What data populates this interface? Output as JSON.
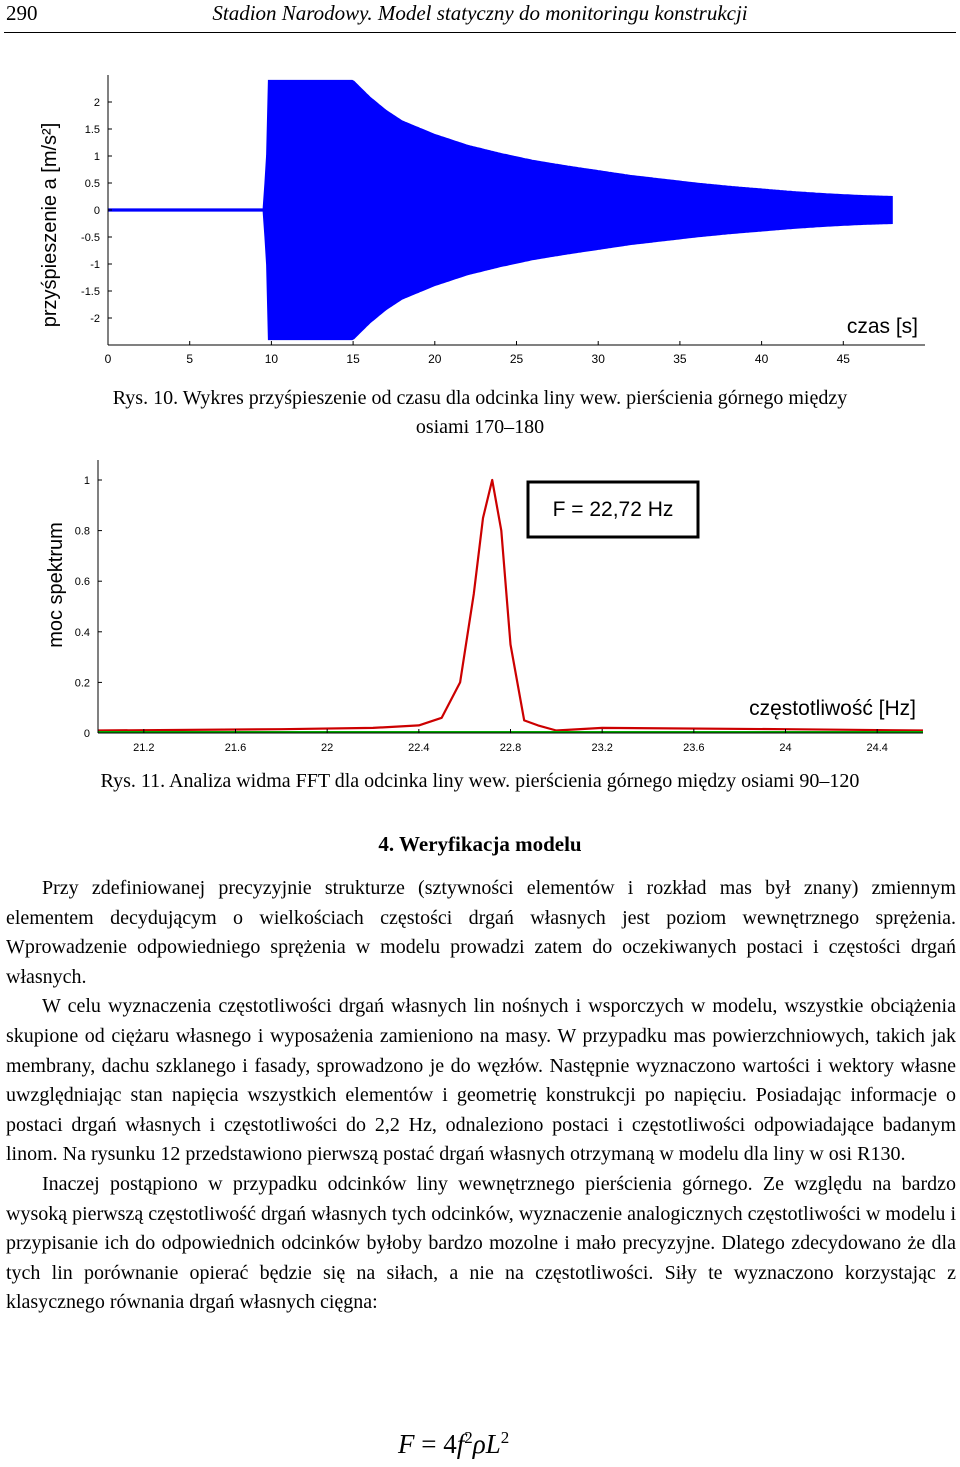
{
  "header": {
    "page_number": "290",
    "running_title": "Stadion Narodowy. Model statyczny do monitoringu konstrukcji"
  },
  "figures": {
    "fig10": {
      "caption_line1": "Rys. 10. Wykres przyśpieszenie od czasu dla odcinka liny wew. pierścienia górnego między",
      "caption_line2": "osiami 170–180",
      "ylabel": "przyśpieszenie a [m/s²]",
      "xlabel": "czas [s]"
    },
    "fig11": {
      "caption": "Rys. 11. Analiza widma FFT dla odcinka liny wew. pierścienia górnego między osiami 90–120",
      "ylabel": "moc spektrum",
      "xlabel": "częstotliwość [Hz]",
      "annotation": "F = 22,72 Hz"
    }
  },
  "chart_data": [
    {
      "type": "line",
      "xlabel": "czas [s]",
      "ylabel": "przyśpieszenie a [m/s²]",
      "xlim": [
        0,
        50
      ],
      "ylim": [
        -2.5,
        2.5
      ],
      "xticks": [
        "0",
        "5",
        "10",
        "15",
        "20",
        "25",
        "30",
        "35",
        "40",
        "45"
      ],
      "yticks": [
        "2",
        "1.5",
        "1",
        "0.5",
        "0",
        "-0.5",
        "-1",
        "-1.5",
        "-2"
      ],
      "color": "#0000ff",
      "grid": false,
      "envelope": {
        "t": [
          0,
          9.5,
          10,
          15,
          16,
          17,
          18,
          20,
          22,
          24,
          26,
          28,
          30,
          32,
          34,
          36,
          38,
          40,
          42,
          44,
          46,
          48
        ],
        "amplitude": [
          0.02,
          0.02,
          2.4,
          2.4,
          2.1,
          1.85,
          1.65,
          1.4,
          1.2,
          1.05,
          0.92,
          0.82,
          0.73,
          0.64,
          0.57,
          0.5,
          0.44,
          0.39,
          0.34,
          0.3,
          0.27,
          0.25
        ]
      }
    },
    {
      "type": "line",
      "xlabel": "częstotliwość [Hz]",
      "ylabel": "moc spektrum",
      "xlim": [
        21.0,
        24.6
      ],
      "ylim": [
        0,
        1.0
      ],
      "xticks": [
        "21.2",
        "21.6",
        "22",
        "22.4",
        "22.8",
        "23.2",
        "23.6",
        "24",
        "24.4"
      ],
      "yticks": [
        "1",
        "0.8",
        "0.6",
        "0.4",
        "0.2",
        "0"
      ],
      "peak_frequency": 22.72,
      "peak_value": 1.0,
      "annotation": "F = 22,72 Hz",
      "series": [
        {
          "color": "#cc0000",
          "x": [
            21.0,
            21.8,
            22.2,
            22.4,
            22.5,
            22.58,
            22.64,
            22.68,
            22.72,
            22.76,
            22.8,
            22.86,
            22.92,
            23.0,
            23.2,
            24.0,
            24.6
          ],
          "y": [
            0.01,
            0.015,
            0.02,
            0.03,
            0.06,
            0.2,
            0.55,
            0.85,
            1.0,
            0.8,
            0.35,
            0.05,
            0.03,
            0.01,
            0.02,
            0.015,
            0.01
          ]
        },
        {
          "color": "#00aa00",
          "x": [
            21.0,
            24.6
          ],
          "y": [
            0.005,
            0.005
          ]
        }
      ]
    }
  ],
  "section": {
    "heading": "4. Weryfikacja modelu",
    "paragraphs": [
      "Przy zdefiniowanej precyzyjnie strukturze (sztywności elementów i rozkład mas był znany) zmiennym elementem decydującym o wielkościach częstości drgań własnych jest poziom wewnętrznego sprężenia. Wprowadzenie odpowiedniego sprężenia w modelu prowadzi zatem do oczekiwanych postaci i częstości drgań własnych.",
      "W celu wyznaczenia częstotliwości drgań własnych lin nośnych i wsporczych w modelu, wszystkie obciążenia skupione od ciężaru własnego i wyposażenia zamieniono na masy. W przypadku mas powierzchniowych, takich jak membrany, dachu szklanego i fasady, sprowadzono je do węzłów. Następnie wyznaczono wartości i wektory własne uwzględniając stan napięcia wszystkich elementów i geometrię konstrukcji po napięciu. Posiadając informacje o postaci drgań własnych i częstotliwości do 2,2 Hz, odnaleziono postaci i częstotliwości odpowiadające badanym linom. Na rysunku 12 przedstawiono pierwszą postać drgań własnych otrzymaną w modelu dla liny w osi R130.",
      "Inaczej postąpiono w przypadku odcinków liny wewnętrznego pierścienia górnego. Ze względu na bardzo wysoką pierwszą częstotliwość drgań własnych tych odcinków, wyznaczenie analogicznych częstotliwości w modelu i przypisanie ich do odpowiednich odcinków byłoby bardzo mozolne i mało precyzyjne. Dlatego zdecydowano że dla tych lin porównanie opierać będzie się na siłach, a nie na częstotliwości. Siły te wyznaczono korzystając z klasycznego równania drgań własnych cięgna:"
    ],
    "formula": {
      "lhs": "F",
      "eq": "=",
      "coef": "4",
      "f": "f",
      "exp1": "2",
      "rho": "ρ",
      "L": "L",
      "exp2": "2"
    }
  }
}
